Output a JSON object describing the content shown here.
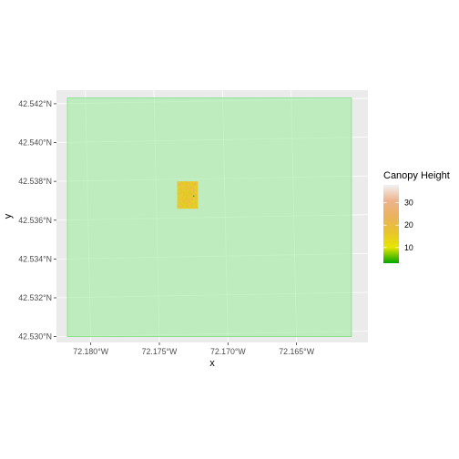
{
  "chart_data": {
    "type": "heatmap",
    "title": "",
    "xlabel": "x",
    "ylabel": "y",
    "x_range_deg": [
      -72.1825,
      -72.1598
    ],
    "y_range_deg": [
      42.5297,
      42.5427
    ],
    "x_ticks": [
      {
        "value": -72.18,
        "label": "72.180°W"
      },
      {
        "value": -72.175,
        "label": "72.175°W"
      },
      {
        "value": -72.17,
        "label": "72.170°W"
      },
      {
        "value": -72.165,
        "label": "72.165°W"
      }
    ],
    "y_ticks": [
      {
        "value": 42.542,
        "label": "42.542°N"
      },
      {
        "value": 42.54,
        "label": "42.540°N"
      },
      {
        "value": 42.538,
        "label": "42.538°N"
      },
      {
        "value": 42.536,
        "label": "42.536°N"
      },
      {
        "value": 42.534,
        "label": "42.534°N"
      },
      {
        "value": 42.532,
        "label": "42.532°N"
      },
      {
        "value": 42.53,
        "label": "42.530°N"
      }
    ],
    "boundary_polygon": {
      "lon": [
        -72.1817,
        -72.161
      ],
      "lat": [
        42.53,
        42.5423
      ],
      "fill": "#a6eda6",
      "stroke": "#7fe07f"
    },
    "raster": {
      "lon": [
        -72.1737,
        -72.1722
      ],
      "lat": [
        42.5366,
        42.538
      ],
      "dominant_value_range": [
        18,
        24
      ]
    },
    "legend": {
      "title": "Canopy Height",
      "position": "right",
      "min": 3,
      "max": 38,
      "breaks": [
        10,
        20,
        30
      ],
      "colors": [
        "#00a600",
        "#e6e600",
        "#e8c32e",
        "#ebb25e",
        "#edb48e",
        "#f2f2f2"
      ]
    },
    "grid": true,
    "panel_background": "#ebebeb"
  }
}
